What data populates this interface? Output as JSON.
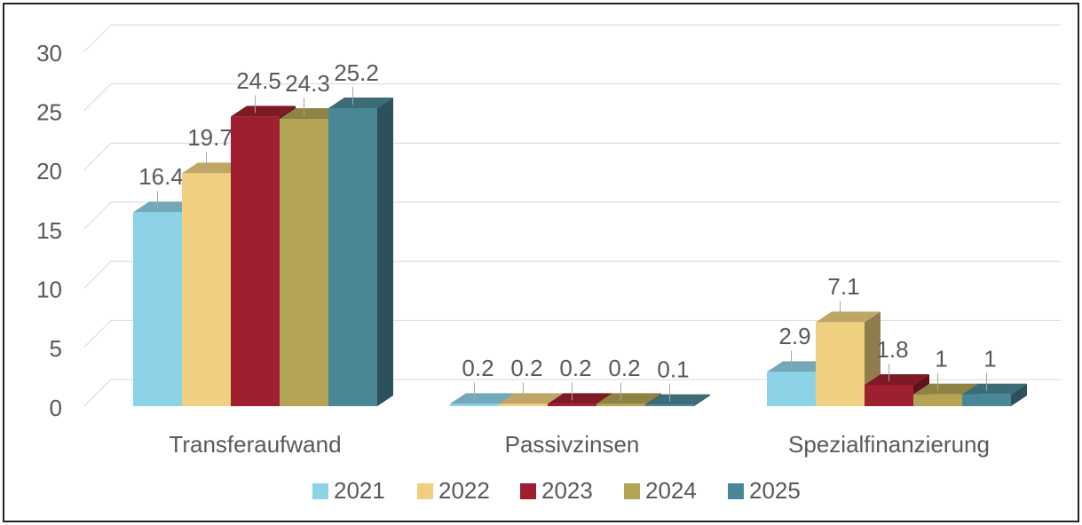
{
  "chart_data": {
    "type": "bar3d",
    "categories": [
      "Transferaufwand",
      "Passivzinsen",
      "Spezialfinanzierung"
    ],
    "series": [
      {
        "name": "2021",
        "color": "#8dd3e8",
        "values": [
          16.4,
          0.2,
          2.9
        ]
      },
      {
        "name": "2022",
        "color": "#f0d080",
        "values": [
          19.7,
          0.2,
          7.1
        ]
      },
      {
        "name": "2023",
        "color": "#9e1f30",
        "values": [
          24.5,
          0.2,
          1.8
        ]
      },
      {
        "name": "2024",
        "color": "#b2a355",
        "values": [
          24.3,
          0.2,
          1
        ]
      },
      {
        "name": "2025",
        "color": "#4a8796",
        "values": [
          25.2,
          0.1,
          1
        ]
      }
    ],
    "ylim": [
      0,
      30
    ],
    "yticks": [
      0,
      5,
      10,
      15,
      20,
      25,
      30
    ],
    "grid": true,
    "legend": "bottom"
  }
}
